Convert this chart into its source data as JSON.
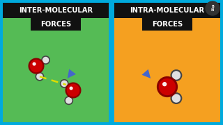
{
  "border_color": "#00AADD",
  "left_bg": "#55BB55",
  "right_bg": "#F5A020",
  "title_bg": "#111111",
  "title_color": "#FFFFFF",
  "title_left_l1": "INTER-MOLECULAR",
  "title_left_l2": "FORCES",
  "title_right_l1": "INTRA-MOLECULAR",
  "title_right_l2": "FORCES",
  "oxygen_color": "#CC0000",
  "oxygen_edge": "#880000",
  "hydrogen_color": "#E0E0E0",
  "hydrogen_edge": "#444444",
  "bond_color": "#222222",
  "dashed_color": "#DDDD00",
  "arrow_color": "#4466CC",
  "logo_bg": "#333333"
}
